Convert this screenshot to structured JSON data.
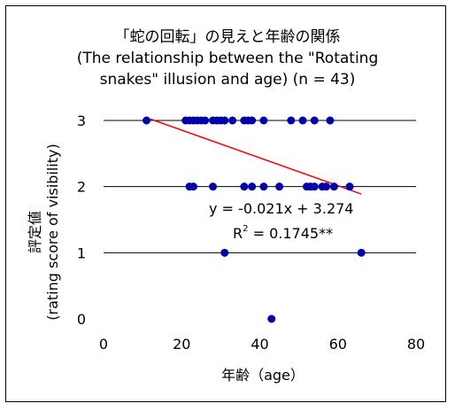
{
  "chart_data": {
    "type": "scatter",
    "title": [
      "「蛇の回転」の見えと年齢の関係",
      "(The relationship between the \"Rotating",
      "snakes\" illusion and age) (n = 43)"
    ],
    "xlabel": "年齢（age）",
    "ylabel": [
      "評定値",
      "(rating score of visibility)"
    ],
    "xlim": [
      0,
      80
    ],
    "ylim": [
      0,
      3
    ],
    "x_ticks": [
      "0",
      "20",
      "40",
      "60",
      "80"
    ],
    "y_ticks": [
      "0",
      "1",
      "2",
      "3"
    ],
    "grid": "horizontal",
    "marker_color": "#0000AA",
    "trendline_color": "#FF0000",
    "points": [
      {
        "x": 11,
        "y": 3
      },
      {
        "x": 21,
        "y": 3
      },
      {
        "x": 22,
        "y": 3
      },
      {
        "x": 23,
        "y": 3
      },
      {
        "x": 24,
        "y": 3
      },
      {
        "x": 25,
        "y": 3
      },
      {
        "x": 26,
        "y": 3
      },
      {
        "x": 28,
        "y": 3
      },
      {
        "x": 29,
        "y": 3
      },
      {
        "x": 30,
        "y": 3
      },
      {
        "x": 31,
        "y": 3
      },
      {
        "x": 33,
        "y": 3
      },
      {
        "x": 36,
        "y": 3
      },
      {
        "x": 37,
        "y": 3
      },
      {
        "x": 38,
        "y": 3
      },
      {
        "x": 41,
        "y": 3
      },
      {
        "x": 48,
        "y": 3
      },
      {
        "x": 51,
        "y": 3
      },
      {
        "x": 54,
        "y": 3
      },
      {
        "x": 58,
        "y": 3
      },
      {
        "x": 22,
        "y": 2
      },
      {
        "x": 23,
        "y": 2
      },
      {
        "x": 28,
        "y": 2
      },
      {
        "x": 36,
        "y": 2
      },
      {
        "x": 38,
        "y": 2
      },
      {
        "x": 41,
        "y": 2
      },
      {
        "x": 45,
        "y": 2
      },
      {
        "x": 52,
        "y": 2
      },
      {
        "x": 53,
        "y": 2
      },
      {
        "x": 54,
        "y": 2
      },
      {
        "x": 56,
        "y": 2
      },
      {
        "x": 57,
        "y": 2
      },
      {
        "x": 59,
        "y": 2
      },
      {
        "x": 63,
        "y": 2
      },
      {
        "x": 31,
        "y": 1
      },
      {
        "x": 66,
        "y": 1
      },
      {
        "x": 43,
        "y": 0
      }
    ],
    "trendline": {
      "slope": -0.021,
      "intercept": 3.274,
      "x_start": 12,
      "x_end": 66
    },
    "equation": "y = -0.021x + 3.274",
    "r2_prefix": "R",
    "r2_sup": "2",
    "r2_value": " = 0.1745**"
  }
}
